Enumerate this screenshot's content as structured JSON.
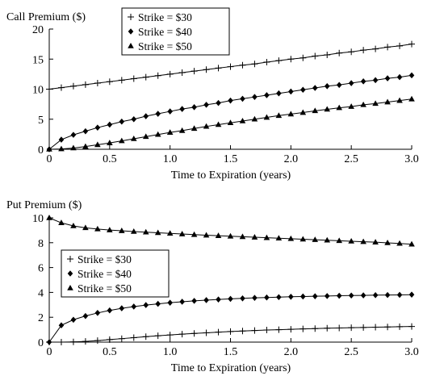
{
  "chart_data": [
    {
      "type": "line",
      "ylabel": "Call Premium ($)",
      "xlabel": "Time to Expiration (years)",
      "xlim": [
        0,
        3.0
      ],
      "ylim": [
        0,
        20
      ],
      "x_ticks": [
        "0",
        "0.5",
        "1.0",
        "1.5",
        "2.0",
        "2.5",
        "3.0"
      ],
      "y_ticks": [
        "0",
        "5",
        "10",
        "15",
        "20"
      ],
      "legend_position": "top-left",
      "grid": false,
      "x": [
        0,
        0.1,
        0.2,
        0.3,
        0.4,
        0.5,
        0.6,
        0.7,
        0.8,
        0.9,
        1.0,
        1.1,
        1.2,
        1.3,
        1.4,
        1.5,
        1.6,
        1.7,
        1.8,
        1.9,
        2.0,
        2.1,
        2.2,
        2.3,
        2.4,
        2.5,
        2.6,
        2.7,
        2.8,
        2.9,
        3.0
      ],
      "series": [
        {
          "name": "Strike = $30",
          "marker": "plus",
          "values": [
            10.0,
            10.25,
            10.5,
            10.75,
            11.0,
            11.25,
            11.5,
            11.75,
            12.0,
            12.25,
            12.5,
            12.75,
            13.0,
            13.25,
            13.5,
            13.75,
            14.0,
            14.2,
            14.5,
            14.75,
            15.0,
            15.2,
            15.5,
            15.7,
            16.0,
            16.2,
            16.5,
            16.7,
            17.0,
            17.2,
            17.5
          ]
        },
        {
          "name": "Strike = $40",
          "marker": "diamond",
          "values": [
            0.0,
            1.6,
            2.4,
            3.0,
            3.6,
            4.1,
            4.6,
            5.0,
            5.5,
            5.9,
            6.3,
            6.7,
            7.0,
            7.4,
            7.7,
            8.1,
            8.4,
            8.7,
            9.0,
            9.3,
            9.6,
            9.9,
            10.2,
            10.5,
            10.7,
            11.0,
            11.3,
            11.5,
            11.8,
            12.0,
            12.3
          ]
        },
        {
          "name": "Strike = $50",
          "marker": "triangle",
          "values": [
            0.0,
            0.05,
            0.2,
            0.45,
            0.75,
            1.05,
            1.4,
            1.75,
            2.1,
            2.45,
            2.8,
            3.1,
            3.45,
            3.8,
            4.1,
            4.4,
            4.7,
            5.0,
            5.3,
            5.6,
            5.85,
            6.1,
            6.4,
            6.65,
            6.9,
            7.1,
            7.4,
            7.6,
            7.85,
            8.1,
            8.35
          ]
        }
      ]
    },
    {
      "type": "line",
      "ylabel": "Put Premium ($)",
      "xlabel": "Time to Expiration (years)",
      "xlim": [
        0,
        3.0
      ],
      "ylim": [
        0,
        10
      ],
      "x_ticks": [
        "0",
        "0.5",
        "1.0",
        "1.5",
        "2.0",
        "2.5",
        "3.0"
      ],
      "y_ticks": [
        "0",
        "2",
        "4",
        "6",
        "8",
        "10"
      ],
      "legend_position": "left-center",
      "grid": false,
      "x": [
        0,
        0.1,
        0.2,
        0.3,
        0.4,
        0.5,
        0.6,
        0.7,
        0.8,
        0.9,
        1.0,
        1.1,
        1.2,
        1.3,
        1.4,
        1.5,
        1.6,
        1.7,
        1.8,
        1.9,
        2.0,
        2.1,
        2.2,
        2.3,
        2.4,
        2.5,
        2.6,
        2.7,
        2.8,
        2.9,
        3.0
      ],
      "series": [
        {
          "name": "Strike = $30",
          "marker": "plus",
          "values": [
            0.0,
            0.0,
            0.02,
            0.06,
            0.12,
            0.2,
            0.28,
            0.36,
            0.44,
            0.51,
            0.58,
            0.64,
            0.7,
            0.75,
            0.8,
            0.85,
            0.89,
            0.93,
            0.97,
            1.0,
            1.03,
            1.06,
            1.09,
            1.12,
            1.14,
            1.16,
            1.18,
            1.2,
            1.22,
            1.24,
            1.26
          ]
        },
        {
          "name": "Strike = $40",
          "marker": "diamond",
          "values": [
            0.0,
            1.35,
            1.8,
            2.1,
            2.35,
            2.55,
            2.72,
            2.86,
            2.98,
            3.08,
            3.17,
            3.25,
            3.32,
            3.38,
            3.43,
            3.48,
            3.52,
            3.56,
            3.59,
            3.62,
            3.65,
            3.67,
            3.69,
            3.71,
            3.73,
            3.75,
            3.76,
            3.78,
            3.79,
            3.8,
            3.82
          ]
        },
        {
          "name": "Strike = $50",
          "marker": "triangle",
          "values": [
            10.0,
            9.6,
            9.35,
            9.2,
            9.1,
            9.02,
            8.96,
            8.9,
            8.85,
            8.8,
            8.75,
            8.7,
            8.65,
            8.6,
            8.56,
            8.52,
            8.48,
            8.44,
            8.4,
            8.36,
            8.32,
            8.28,
            8.24,
            8.2,
            8.16,
            8.12,
            8.08,
            8.04,
            7.99,
            7.94,
            7.88
          ]
        }
      ]
    }
  ]
}
